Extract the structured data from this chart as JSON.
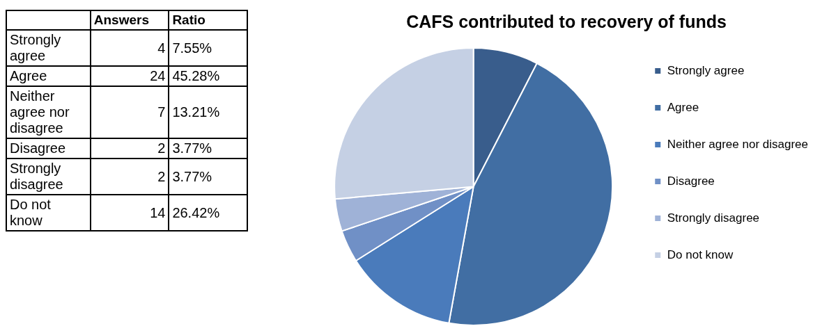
{
  "chart_data": [
    {
      "type": "other",
      "data_labels": true,
      "categories": [
        "Strongly agree",
        "Agree",
        "Neither agree nor disagree",
        "Disagree",
        "Strongly disagree",
        "Do not know"
      ],
      "series": [
        {
          "name": "Answers",
          "values": [
            4,
            24,
            7,
            2,
            2,
            14
          ]
        },
        {
          "name": "Ratio",
          "values": [
            7.55,
            45.28,
            13.21,
            3.77,
            3.77,
            26.42
          ],
          "value_labels": [
            "7.55%",
            "45.28%",
            "13.21%",
            "3.77%",
            "3.77%",
            "26.42%"
          ]
        }
      ]
    },
    {
      "type": "pie",
      "title": "CAFS contributed to recovery of funds",
      "categories": [
        "Strongly agree",
        "Agree",
        "Neither agree nor disagree",
        "Disagree",
        "Strongly disagree",
        "Do not know"
      ],
      "values": [
        7.55,
        45.28,
        13.21,
        3.77,
        3.77,
        26.42
      ],
      "colors": [
        "#395d8c",
        "#416ea3",
        "#4a7bbb",
        "#7090c6",
        "#9fb2d7",
        "#c5d0e4"
      ],
      "legend": "right"
    }
  ]
}
